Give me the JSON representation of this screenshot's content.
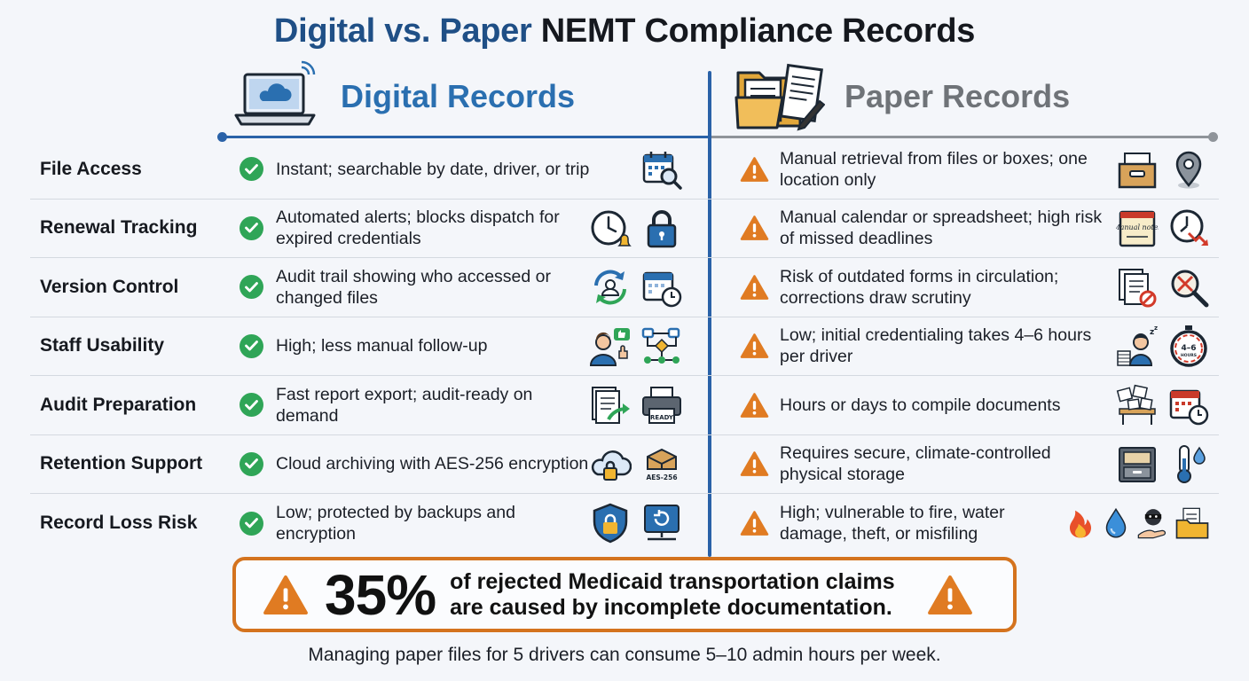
{
  "title": {
    "part1": "Digital vs. Paper",
    "part2": "NEMT Compliance Records"
  },
  "columns": {
    "digital": "Digital Records",
    "paper": "Paper Records"
  },
  "rows": [
    {
      "label": "File Access",
      "digital": "Instant; searchable by date, driver, or trip",
      "paper": "Manual retrieval from files or boxes; one location only",
      "digital_icons": [
        "calendar-search-icon"
      ],
      "paper_icons": [
        "file-box-icon",
        "location-pin-icon"
      ]
    },
    {
      "label": "Renewal Tracking",
      "digital": "Automated alerts; blocks dispatch for expired credentials",
      "paper": "Manual calendar or spreadsheet; high risk of missed deadlines",
      "digital_icons": [
        "alarm-clock-bell-icon",
        "padlock-icon"
      ],
      "paper_icons": [
        "manual-notes-icon",
        "clock-down-arrow-icon"
      ]
    },
    {
      "label": "Version Control",
      "digital": "Audit trail showing who accessed or changed files",
      "paper": "Risk of outdated forms in circulation; corrections draw scrutiny",
      "digital_icons": [
        "user-sync-icon",
        "calendar-clock-icon"
      ],
      "paper_icons": [
        "outdated-documents-icon",
        "magnifier-crossed-icon"
      ]
    },
    {
      "label": "Staff Usability",
      "digital": "High; less manual follow-up",
      "paper": "Low; initial credentialing takes 4–6 hours per driver",
      "digital_icons": [
        "thumbs-up-user-icon",
        "workflow-icon"
      ],
      "paper_icons": [
        "tired-worker-icon",
        "stopwatch-icon"
      ]
    },
    {
      "label": "Audit Preparation",
      "digital": "Fast report export; audit-ready on demand",
      "paper": "Hours or days to compile documents",
      "digital_icons": [
        "document-export-icon",
        "printer-ready-icon"
      ],
      "paper_icons": [
        "scattered-papers-icon",
        "calendar-clock-icon"
      ]
    },
    {
      "label": "Retention Support",
      "digital": "Cloud archiving with AES-256 encryption",
      "paper": "Requires secure, climate-controlled physical storage",
      "digital_icons": [
        "cloud-lock-icon",
        "encrypted-box-icon"
      ],
      "paper_icons": [
        "file-cabinet-icon",
        "thermometer-icon"
      ]
    },
    {
      "label": "Record Loss Risk",
      "digital": "Low; protected by backups and encryption",
      "paper": "High; vulnerable to fire, water damage, theft, or misfiling",
      "digital_icons": [
        "shield-lock-icon",
        "backup-drive-icon"
      ],
      "paper_icons": [
        "fire-icon",
        "water-drop-icon",
        "thief-icon",
        "folder-icon"
      ]
    }
  ],
  "icon_labels": {
    "printer_ready": "READY",
    "aes": "AES-256",
    "manual_notes": "Manual notes",
    "stopwatch": "4–6",
    "stopwatch_sub": "HOURS"
  },
  "stat": {
    "value": "35%",
    "line1": "of rejected Medicaid transportation claims",
    "line2": "are caused by incomplete documentation."
  },
  "footnote": "Managing paper files for 5 drivers can consume 5–10 admin hours per week.",
  "colors": {
    "digital_blue": "#2a6fb0",
    "check_green": "#2fa557",
    "warning_orange": "#e07b22",
    "stat_border": "#d4731e",
    "paper_gray": "#6f7378"
  }
}
